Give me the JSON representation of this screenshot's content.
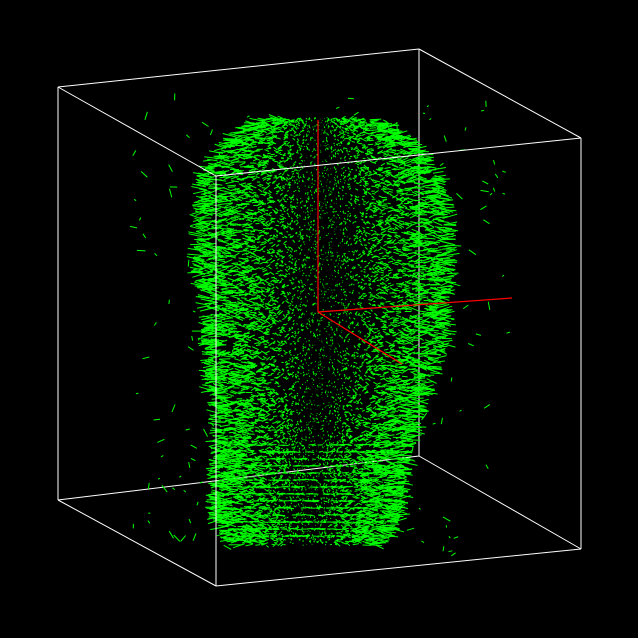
{
  "viewer": {
    "background_color": "#000000",
    "bounding_box_color": "#ffffff",
    "field_color": "#00ff00",
    "axis_color": "#ff0000"
  },
  "scene": {
    "object": "surface-normal-vector-field",
    "box_wireframe": true,
    "axes_visible": true
  }
}
